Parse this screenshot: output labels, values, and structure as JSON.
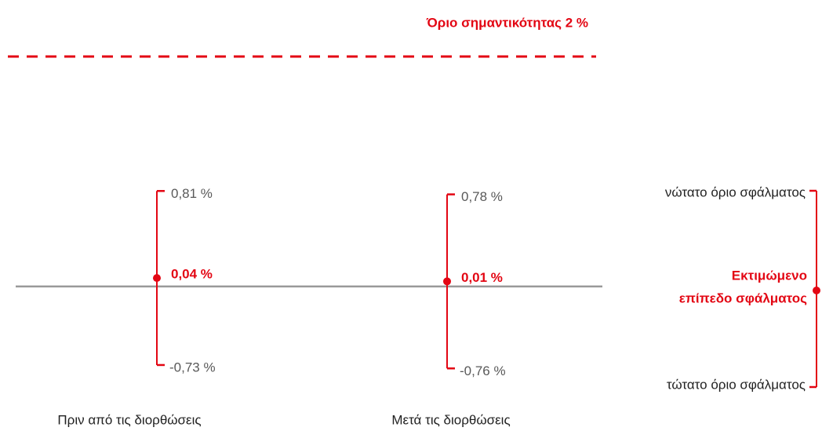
{
  "chart_data": {
    "type": "errorbar",
    "categories": [
      "Πριν από τις διορθώσεις",
      "Μετά τις διορθώσεις"
    ],
    "values": [
      0.04,
      0.01
    ],
    "value_labels": [
      "0,04 %",
      "0,01 %"
    ],
    "upper": [
      0.81,
      0.78
    ],
    "upper_labels": [
      "0,81 %",
      "0,78 %"
    ],
    "lower": [
      -0.73,
      -0.76
    ],
    "lower_labels": [
      "-0,73 %",
      "-0,76 %"
    ],
    "color": "#e30613",
    "label_color": "#595959",
    "baseline_color": "#999999",
    "ylim": [
      -1.3,
      2.5
    ],
    "threshold": {
      "value": 2,
      "label": "Όριο σημαντικότητας 2 %"
    },
    "legend": {
      "upper": "νώτατο όριο σφάλματος",
      "estimate": [
        "Εκτιμώμενο",
        "επίπεδο σφάλματος"
      ],
      "lower": "τώτατο όριο σφάλματος"
    }
  }
}
